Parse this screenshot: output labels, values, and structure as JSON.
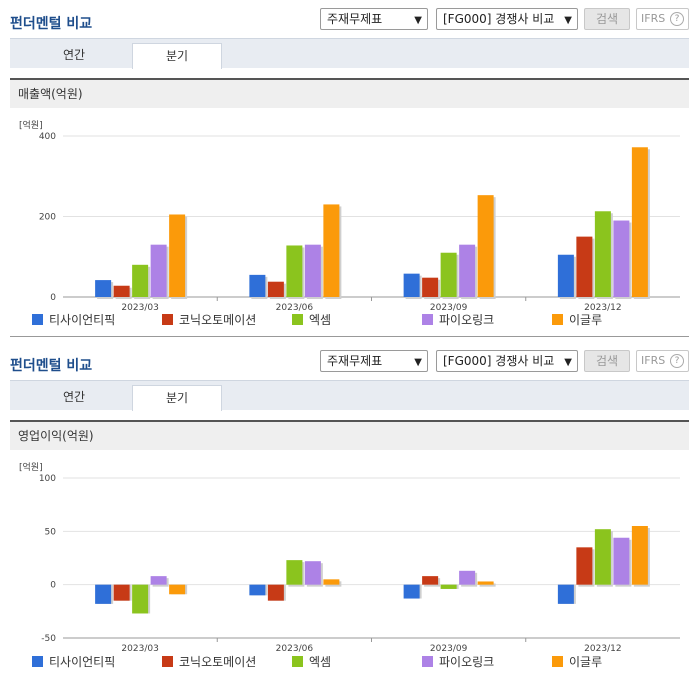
{
  "colors": {
    "series": [
      "#2f6fd8",
      "#c73a16",
      "#8bc41e",
      "#ad82e6",
      "#fb9a0a"
    ],
    "grid": "#e2e2e2",
    "axis": "#999999",
    "title": "#1f4e8c"
  },
  "sections": [
    {
      "title": "펀더멘털 비교",
      "select_a": "주재무제표",
      "select_b": "[FG000] 경쟁사 비교",
      "search_label": "검색",
      "ifrs_label": "IFRS",
      "help_icon": "?",
      "tabs": [
        "연간",
        "분기"
      ],
      "active_tab": "분기",
      "subtitle": "매출액(억원)",
      "unit_label": "[억원]"
    },
    {
      "title": "펀더멘털 비교",
      "select_a": "주재무제표",
      "select_b": "[FG000] 경쟁사 비교",
      "search_label": "검색",
      "ifrs_label": "IFRS",
      "help_icon": "?",
      "tabs": [
        "연간",
        "분기"
      ],
      "active_tab": "분기",
      "subtitle": "영업이익(억원)",
      "unit_label": "[억원]"
    }
  ],
  "chart_data": [
    {
      "type": "bar",
      "title": "매출액(억원)",
      "ylabel": "[억원]",
      "categories": [
        "2023/03",
        "2023/06",
        "2023/09",
        "2023/12"
      ],
      "ylim": [
        0,
        400
      ],
      "yticks": [
        0,
        200,
        400
      ],
      "series": [
        {
          "name": "티사이언티픽",
          "values": [
            42,
            55,
            58,
            105
          ]
        },
        {
          "name": "코닉오토메이션",
          "values": [
            28,
            38,
            48,
            150
          ]
        },
        {
          "name": "엑셈",
          "values": [
            80,
            128,
            110,
            213
          ]
        },
        {
          "name": "파이오링크",
          "values": [
            130,
            130,
            130,
            190
          ]
        },
        {
          "name": "이글루",
          "values": [
            205,
            230,
            253,
            372
          ]
        }
      ]
    },
    {
      "type": "bar",
      "title": "영업이익(억원)",
      "ylabel": "[억원]",
      "categories": [
        "2023/03",
        "2023/06",
        "2023/09",
        "2023/12"
      ],
      "ylim": [
        -50,
        100
      ],
      "yticks": [
        -50,
        0,
        50,
        100
      ],
      "series": [
        {
          "name": "티사이언티픽",
          "values": [
            -18,
            -10,
            -13,
            -18
          ]
        },
        {
          "name": "코닉오토메이션",
          "values": [
            -15,
            -15,
            8,
            35
          ]
        },
        {
          "name": "엑셈",
          "values": [
            -27,
            23,
            -4,
            52
          ]
        },
        {
          "name": "파이오링크",
          "values": [
            8,
            22,
            13,
            44
          ]
        },
        {
          "name": "이글루",
          "values": [
            -9,
            5,
            3,
            55
          ]
        }
      ]
    }
  ]
}
